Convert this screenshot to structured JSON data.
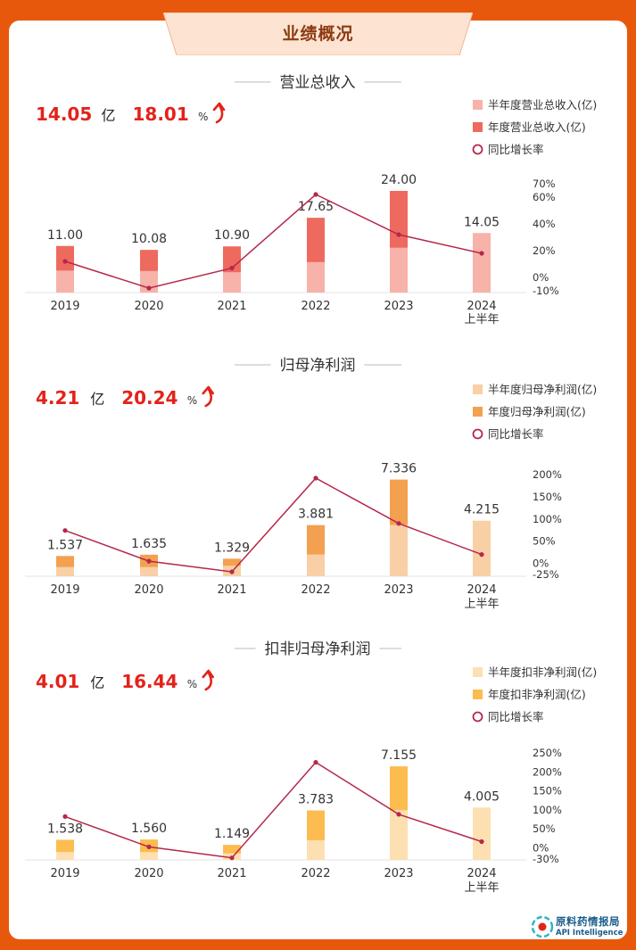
{
  "page_title": "业绩概况",
  "brand": {
    "name": "原料药情报局",
    "sub": "API Intelligence"
  },
  "colors": {
    "background": "#e8580c",
    "card": "#ffffff",
    "banner": "#fde3d2",
    "highlight": "#e2231a",
    "line": "#b5284a"
  },
  "chart_data": [
    {
      "type": "bar",
      "title": "营业总收入",
      "headline": {
        "value": "14.05",
        "unit": "亿",
        "growth": "18.01",
        "growth_unit": "%"
      },
      "legend": [
        "半年度营业总收入(亿)",
        "年度营业总收入(亿)",
        "同比增长率"
      ],
      "categories": [
        "2019",
        "2020",
        "2021",
        "2022",
        "2023",
        "2024"
      ],
      "category_sub": [
        "",
        "",
        "",
        "",
        "",
        "上半年"
      ],
      "series": [
        {
          "name": "半年度营业总收入(亿)",
          "values": [
            5.2,
            5.1,
            4.8,
            7.2,
            10.6,
            14.05
          ]
        },
        {
          "name": "年度营业总收入(亿)",
          "values": [
            11.0,
            10.08,
            10.9,
            17.65,
            24.0,
            null
          ]
        },
        {
          "name": "同比增长率",
          "values": [
            12,
            -8,
            7,
            62,
            32,
            18
          ]
        }
      ],
      "value_labels": [
        "11.00",
        "10.08",
        "10.90",
        "17.65",
        "24.00",
        "14.05"
      ],
      "bar_max": 28,
      "right_axis": {
        "ticks": [
          70,
          60,
          40,
          20,
          0,
          -10
        ],
        "tick_labels": [
          "70%",
          "60%",
          "40%",
          "20%",
          "0%",
          "-10%"
        ],
        "min": -10,
        "max": 70
      },
      "colors": {
        "half": "#f7b2a9",
        "full": "#ee6a5e"
      }
    },
    {
      "type": "bar",
      "title": "归母净利润",
      "headline": {
        "value": "4.21",
        "unit": "亿",
        "growth": "20.24",
        "growth_unit": "%"
      },
      "legend": [
        "半年度归母净利润(亿)",
        "年度归母净利润(亿)",
        "同比增长率"
      ],
      "categories": [
        "2019",
        "2020",
        "2021",
        "2022",
        "2023",
        "2024"
      ],
      "category_sub": [
        "",
        "",
        "",
        "",
        "",
        "上半年"
      ],
      "series": [
        {
          "name": "半年度归母净利润(亿)",
          "values": [
            0.7,
            0.7,
            0.8,
            1.65,
            3.9,
            4.215
          ]
        },
        {
          "name": "年度归母净利润(亿)",
          "values": [
            1.537,
            1.635,
            1.329,
            3.881,
            7.336,
            null
          ]
        },
        {
          "name": "同比增长率",
          "values": [
            74,
            5,
            -19,
            192,
            90,
            20
          ]
        }
      ],
      "value_labels": [
        "1.537",
        "1.635",
        "1.329",
        "3.881",
        "7.336",
        "4.215"
      ],
      "bar_max": 8.8,
      "right_axis": {
        "ticks": [
          200,
          150,
          100,
          50,
          0,
          -25
        ],
        "tick_labels": [
          "200%",
          "150%",
          "100%",
          "50%",
          "0%",
          "-25%"
        ],
        "min": -25,
        "max": 200
      },
      "colors": {
        "half": "#f9cfa6",
        "full": "#f3a050"
      }
    },
    {
      "type": "bar",
      "title": "扣非归母净利润",
      "headline": {
        "value": "4.01",
        "unit": "亿",
        "growth": "16.44",
        "growth_unit": "%"
      },
      "legend": [
        "半年度扣非净利润(亿)",
        "年度扣非净利润(亿)",
        "同比增长率"
      ],
      "categories": [
        "2019",
        "2020",
        "2021",
        "2022",
        "2023",
        "2024"
      ],
      "category_sub": [
        "",
        "",
        "",
        "",
        "",
        "上半年"
      ],
      "series": [
        {
          "name": "半年度扣非净利润(亿)",
          "values": [
            0.6,
            0.6,
            0.5,
            1.5,
            3.8,
            4.005
          ]
        },
        {
          "name": "年度扣非净利润(亿)",
          "values": [
            1.538,
            1.56,
            1.149,
            3.783,
            7.155,
            null
          ]
        },
        {
          "name": "同比增长率",
          "values": [
            82,
            2,
            -27,
            225,
            88,
            16
          ]
        }
      ],
      "value_labels": [
        "1.538",
        "1.560",
        "1.149",
        "3.783",
        "7.155",
        "4.005"
      ],
      "bar_max": 8.8,
      "right_axis": {
        "ticks": [
          250,
          200,
          150,
          100,
          50,
          0,
          -30
        ],
        "tick_labels": [
          "250%",
          "200%",
          "150%",
          "100%",
          "50%",
          "0%",
          "-30%"
        ],
        "min": -30,
        "max": 250
      },
      "colors": {
        "half": "#fde0b2",
        "full": "#fcbc50"
      }
    }
  ]
}
